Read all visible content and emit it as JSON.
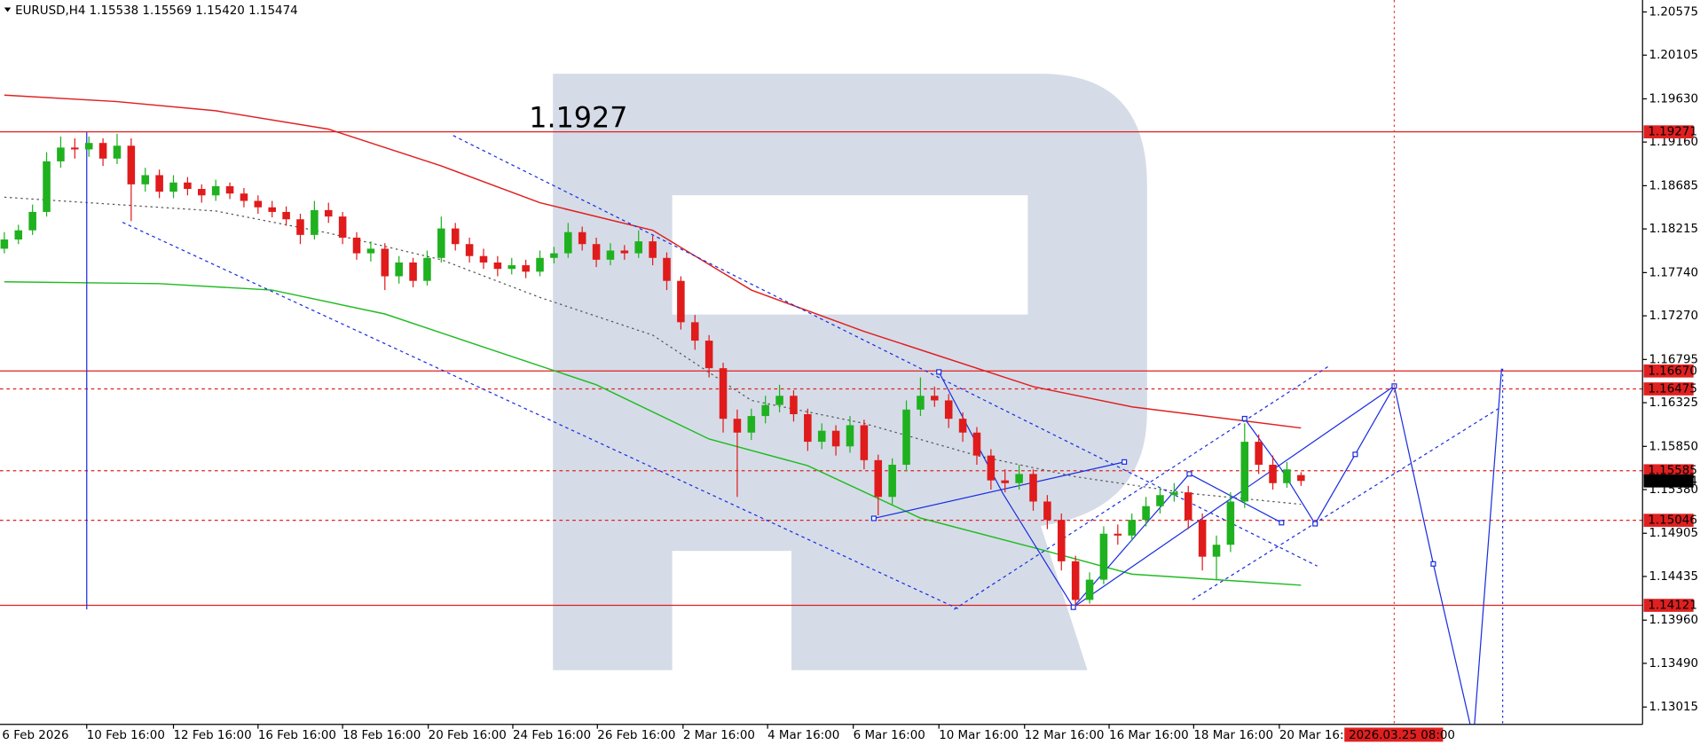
{
  "chart_data": {
    "type": "candlestick",
    "title": "EURUSD,H4  1.15538 1.15569 1.15420 1.15474",
    "annotation": "1.1927",
    "up_color": "#1fb11f",
    "down_color": "#e01b1b",
    "ylim": [
      1.12826,
      1.20705
    ],
    "yticks": [
      1.20575,
      1.20105,
      {
        "value": 1.1963,
        "label": "1.19630"
      },
      {
        "value": 1.1916,
        "label": "1.19160"
      },
      1.18685,
      1.18215,
      {
        "value": 1.1774,
        "label": "1.17740"
      },
      {
        "value": 1.1727,
        "label": "1.17270"
      },
      1.16795,
      1.16325,
      {
        "value": 1.1585,
        "label": "1.15850"
      },
      {
        "value": 1.1538,
        "label": "1.15380"
      },
      1.14905,
      1.14435,
      {
        "value": 1.1396,
        "label": "1.13960"
      },
      {
        "value": 1.1349,
        "label": "1.13490"
      },
      1.13015
    ],
    "levels": [
      1.19271,
      {
        "value": 1.1667,
        "label": "1.16670"
      },
      1.16475,
      1.15585,
      1.15046,
      1.14121
    ],
    "level_dashed": [
      false,
      false,
      true,
      true,
      true,
      false
    ],
    "level_color": "#e02020",
    "current_price": 1.15474,
    "categories": [
      "6 Feb 2026",
      "10 Feb 16:00",
      "12 Feb 16:00",
      "16 Feb 16:00",
      "18 Feb 16:00",
      "20 Feb 16:00",
      "24 Feb 16:00",
      "26 Feb 16:00",
      "2 Mar 16:00",
      "4 Mar 16:00",
      "6 Mar 16:00",
      "10 Mar 16:00",
      "12 Mar 16:00",
      "16 Mar 16:00",
      "18 Mar 16:00",
      "20 Mar 16:00"
    ],
    "cursor_time": "2026.03.25 08:00",
    "ohlc": [
      [
        1.18,
        1.1818,
        1.1795,
        1.181
      ],
      [
        1.181,
        1.1826,
        1.1805,
        1.182
      ],
      [
        1.182,
        1.1848,
        1.1815,
        1.184
      ],
      [
        1.184,
        1.1905,
        1.1835,
        1.1895
      ],
      [
        1.1895,
        1.1922,
        1.1888,
        1.191
      ],
      [
        1.191,
        1.192,
        1.1898,
        1.1908
      ],
      [
        1.1908,
        1.1922,
        1.19,
        1.1915
      ],
      [
        1.1915,
        1.192,
        1.189,
        1.1898
      ],
      [
        1.1898,
        1.1925,
        1.1892,
        1.1912
      ],
      [
        1.1912,
        1.192,
        1.183,
        1.187
      ],
      [
        1.187,
        1.1888,
        1.1862,
        1.188
      ],
      [
        1.188,
        1.1886,
        1.1855,
        1.1862
      ],
      [
        1.1862,
        1.188,
        1.1855,
        1.1872
      ],
      [
        1.1872,
        1.1878,
        1.1858,
        1.1865
      ],
      [
        1.1865,
        1.187,
        1.185,
        1.1858
      ],
      [
        1.1858,
        1.1875,
        1.1852,
        1.1868
      ],
      [
        1.1868,
        1.1872,
        1.1854,
        1.186
      ],
      [
        1.186,
        1.1866,
        1.1845,
        1.1852
      ],
      [
        1.1852,
        1.1858,
        1.1838,
        1.1845
      ],
      [
        1.1845,
        1.1852,
        1.1834,
        1.184
      ],
      [
        1.184,
        1.1846,
        1.1825,
        1.1832
      ],
      [
        1.1832,
        1.1838,
        1.1805,
        1.1815
      ],
      [
        1.1815,
        1.1852,
        1.181,
        1.1842
      ],
      [
        1.1842,
        1.185,
        1.1828,
        1.1835
      ],
      [
        1.1835,
        1.184,
        1.1805,
        1.1812
      ],
      [
        1.1812,
        1.1818,
        1.1788,
        1.1795
      ],
      [
        1.1795,
        1.1808,
        1.1786,
        1.18
      ],
      [
        1.18,
        1.1806,
        1.1755,
        1.177
      ],
      [
        1.177,
        1.1792,
        1.1762,
        1.1785
      ],
      [
        1.1785,
        1.179,
        1.1758,
        1.1765
      ],
      [
        1.1765,
        1.1798,
        1.176,
        1.179
      ],
      [
        1.179,
        1.1835,
        1.1785,
        1.1822
      ],
      [
        1.1822,
        1.1828,
        1.1798,
        1.1805
      ],
      [
        1.1805,
        1.1812,
        1.1785,
        1.1792
      ],
      [
        1.1792,
        1.18,
        1.1778,
        1.1785
      ],
      [
        1.1785,
        1.1792,
        1.177,
        1.1778
      ],
      [
        1.1778,
        1.179,
        1.1772,
        1.1782
      ],
      [
        1.1782,
        1.1788,
        1.1768,
        1.1775
      ],
      [
        1.1775,
        1.1798,
        1.177,
        1.179
      ],
      [
        1.179,
        1.1802,
        1.1784,
        1.1795
      ],
      [
        1.1795,
        1.1828,
        1.179,
        1.1818
      ],
      [
        1.1818,
        1.1824,
        1.1798,
        1.1805
      ],
      [
        1.1805,
        1.1812,
        1.178,
        1.1788
      ],
      [
        1.1788,
        1.1806,
        1.1782,
        1.1798
      ],
      [
        1.1798,
        1.1804,
        1.1788,
        1.1795
      ],
      [
        1.1795,
        1.182,
        1.179,
        1.1808
      ],
      [
        1.1808,
        1.1814,
        1.1782,
        1.179
      ],
      [
        1.179,
        1.1796,
        1.1755,
        1.1765
      ],
      [
        1.1765,
        1.177,
        1.1712,
        1.172
      ],
      [
        1.172,
        1.1728,
        1.169,
        1.17
      ],
      [
        1.17,
        1.1706,
        1.166,
        1.167
      ],
      [
        1.167,
        1.1676,
        1.16,
        1.1615
      ],
      [
        1.1615,
        1.1625,
        1.153,
        1.16
      ],
      [
        1.16,
        1.1626,
        1.1592,
        1.1618
      ],
      [
        1.1618,
        1.164,
        1.161,
        1.163
      ],
      [
        1.163,
        1.1652,
        1.1622,
        1.164
      ],
      [
        1.164,
        1.1646,
        1.1612,
        1.162
      ],
      [
        1.162,
        1.1626,
        1.158,
        1.159
      ],
      [
        1.159,
        1.161,
        1.1582,
        1.1602
      ],
      [
        1.1602,
        1.1608,
        1.1575,
        1.1585
      ],
      [
        1.1585,
        1.1618,
        1.1578,
        1.1608
      ],
      [
        1.1608,
        1.1614,
        1.156,
        1.157
      ],
      [
        1.157,
        1.1576,
        1.151,
        1.153
      ],
      [
        1.153,
        1.1572,
        1.1522,
        1.1565
      ],
      [
        1.1565,
        1.1635,
        1.1558,
        1.1625
      ],
      [
        1.1625,
        1.166,
        1.1618,
        1.164
      ],
      [
        1.164,
        1.165,
        1.1628,
        1.1635
      ],
      [
        1.1635,
        1.1642,
        1.1605,
        1.1615
      ],
      [
        1.1615,
        1.1622,
        1.159,
        1.16
      ],
      [
        1.16,
        1.1606,
        1.1565,
        1.1575
      ],
      [
        1.1575,
        1.1582,
        1.1538,
        1.1548
      ],
      [
        1.1548,
        1.156,
        1.1535,
        1.1545
      ],
      [
        1.1545,
        1.1565,
        1.1538,
        1.1555
      ],
      [
        1.1555,
        1.156,
        1.1515,
        1.1525
      ],
      [
        1.1525,
        1.1532,
        1.1495,
        1.1505
      ],
      [
        1.1505,
        1.1512,
        1.145,
        1.146
      ],
      [
        1.146,
        1.1466,
        1.1412,
        1.1418
      ],
      [
        1.1418,
        1.1448,
        1.1414,
        1.144
      ],
      [
        1.144,
        1.1498,
        1.1435,
        1.149
      ],
      [
        1.149,
        1.15,
        1.1478,
        1.1488
      ],
      [
        1.1488,
        1.1512,
        1.1482,
        1.1505
      ],
      [
        1.1505,
        1.153,
        1.1498,
        1.152
      ],
      [
        1.152,
        1.154,
        1.1512,
        1.1532
      ],
      [
        1.1532,
        1.1545,
        1.1525,
        1.1535
      ],
      [
        1.1535,
        1.1542,
        1.1495,
        1.1505
      ],
      [
        1.1505,
        1.1512,
        1.145,
        1.1465
      ],
      [
        1.1465,
        1.1488,
        1.144,
        1.1478
      ],
      [
        1.1478,
        1.1535,
        1.147,
        1.1525
      ],
      [
        1.1525,
        1.161,
        1.1518,
        1.159
      ],
      [
        1.159,
        1.1598,
        1.1555,
        1.1565
      ],
      [
        1.1565,
        1.1575,
        1.1538,
        1.1545
      ],
      [
        1.1545,
        1.1568,
        1.154,
        1.156
      ],
      [
        1.15538,
        1.15569,
        1.1542,
        1.15474
      ]
    ],
    "ma_lines": [
      {
        "color": "#e02020",
        "dashed": false,
        "x": [
          0,
          8,
          15,
          23,
          31,
          38,
          46,
          53,
          61,
          66,
          73,
          80,
          92
        ],
        "values": [
          1.1967,
          1.196,
          1.195,
          1.193,
          1.189,
          1.185,
          1.182,
          1.1755,
          1.171,
          1.1685,
          1.165,
          1.1628,
          1.1605
        ]
      },
      {
        "color": "#22bb22",
        "dashed": false,
        "x": [
          0,
          11,
          19,
          27,
          34,
          42,
          50,
          57,
          65,
          73,
          80,
          92
        ],
        "values": [
          1.1764,
          1.1762,
          1.1755,
          1.1729,
          1.1693,
          1.1652,
          1.1593,
          1.1564,
          1.1507,
          1.1475,
          1.1446,
          1.1434
        ]
      },
      {
        "color": "#555555",
        "dashed": true,
        "x": [
          0,
          15,
          23,
          31,
          38,
          46,
          53,
          61,
          69,
          76,
          84,
          92
        ],
        "values": [
          1.1856,
          1.1841,
          1.1817,
          1.1788,
          1.1747,
          1.1706,
          1.1635,
          1.161,
          1.1575,
          1.1552,
          1.1534,
          1.1522
        ]
      }
    ]
  }
}
